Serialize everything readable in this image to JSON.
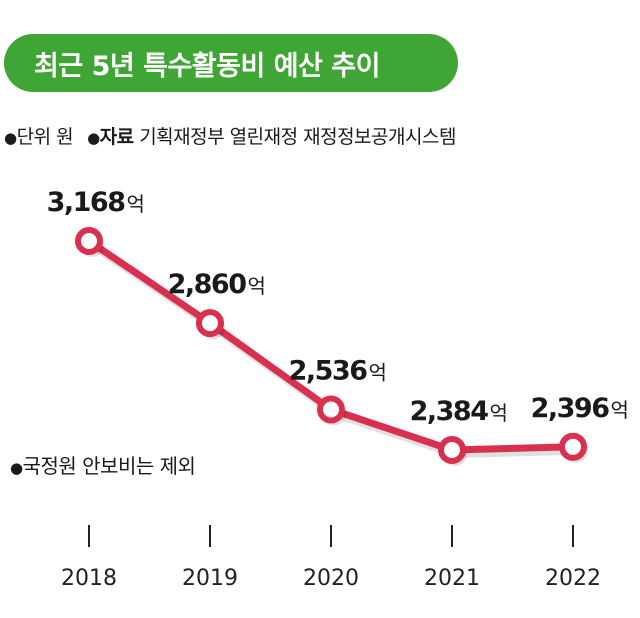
{
  "header": {
    "title": "최근 5년 특수활동비 예산 추이"
  },
  "meta": {
    "bullet": "●",
    "unit_label": "단위",
    "unit_value": "원",
    "source_label": "자료",
    "source_value": "기획재정부 열린재정 재정정보공개시스템"
  },
  "note": {
    "text": "국정원 안보비는 제외"
  },
  "chart_data": {
    "type": "line",
    "title": "최근 5년 특수활동비 예산 추이",
    "xlabel": "",
    "ylabel": "",
    "unit": "억",
    "categories": [
      "2018",
      "2019",
      "2020",
      "2021",
      "2022"
    ],
    "values": [
      3168,
      2860,
      2536,
      2384,
      2396
    ],
    "value_labels": [
      "3,168",
      "2,860",
      "2,536",
      "2,384",
      "2,396"
    ],
    "grid": false,
    "legend": "none",
    "line_color": "#d9304f",
    "marker_fill": "#ffffff"
  }
}
